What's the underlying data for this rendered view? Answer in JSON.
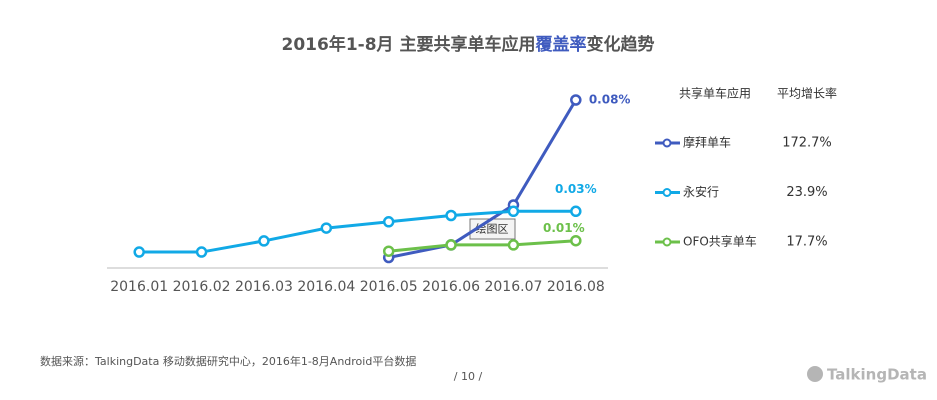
{
  "chart_data": {
    "type": "line",
    "title": [
      "2016年1-8月 主要共享单车应用",
      "覆盖率",
      "变化趋势"
    ],
    "categories": [
      "2016.01",
      "2016.02",
      "2016.03",
      "2016.04",
      "2016.05",
      "2016.06",
      "2016.07",
      "2016.08"
    ],
    "ylim": [
      0,
      0.085
    ],
    "series": [
      {
        "name": "摩拜单车",
        "color": "#3f5bbf",
        "growth": "172.7%",
        "values": [
          null,
          null,
          null,
          null,
          0.005,
          0.011,
          0.03,
          0.08
        ],
        "value_labels": [
          null,
          null,
          null,
          null,
          null,
          null,
          null,
          "0.08%"
        ]
      },
      {
        "name": "永安行",
        "color": "#11a9e6",
        "growth": "23.9%",
        "values": [
          0.0076,
          0.0076,
          0.0129,
          0.019,
          0.022,
          0.025,
          0.027,
          0.027
        ],
        "value_labels": [
          null,
          null,
          null,
          null,
          null,
          null,
          null,
          "0.03%"
        ]
      },
      {
        "name": "OFO共享单车",
        "color": "#6cc04a",
        "growth": "17.7%",
        "values": [
          null,
          null,
          null,
          null,
          0.008,
          0.011,
          0.011,
          0.013
        ],
        "value_labels": [
          null,
          null,
          null,
          null,
          null,
          null,
          null,
          "0.01%"
        ]
      }
    ],
    "table_headers": [
      "共享单车应用",
      "平均增长率"
    ],
    "tooltip": "绘图区"
  },
  "footer": {
    "source": "数据来源：TalkingData 移动数据研究中心，2016年1-8月Android平台数据",
    "page": "/  10  /",
    "logo": "TalkingData"
  }
}
